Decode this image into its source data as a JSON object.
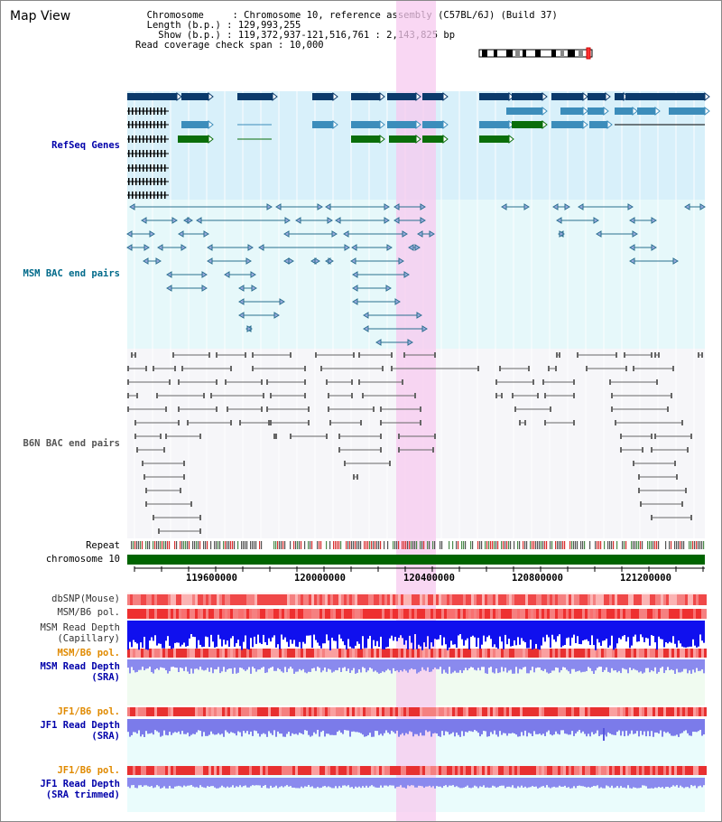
{
  "title": "Map View",
  "info": {
    "chromosome_label": "Chromosome",
    "chromosome_value": "Chromosome 10, reference assembly (C57BL/6J) (Build 37)",
    "length_label": "Length (b.p.)",
    "length_value": "129,993,255",
    "show_label": "Show (b.p.)",
    "show_value": "119,372,937-121,516,761 : 2,143,825 bp",
    "coverage_label": "Read coverage check span",
    "coverage_value": "10,000"
  },
  "tracks": {
    "refseq": "RefSeq Genes",
    "msm_bac": "MSM BAC end pairs",
    "b6n_bac": "B6N BAC end pairs",
    "repeat": "Repeat",
    "chromosome": "chromosome 10",
    "dbsnp": "dbSNP(Mouse)",
    "msm_b6_pol": "MSM/B6 pol.",
    "msm_read_depth_cap_1": "MSM Read Depth",
    "msm_read_depth_cap_2": "(Capillary)",
    "msm_b6_pol_sra": "MSM/B6 pol.",
    "msm_read_depth_sra_1": "MSM Read Depth",
    "msm_read_depth_sra_2": "(SRA)",
    "jf1_b6_pol": "JF1/B6 pol.",
    "jf1_read_depth_1": "JF1 Read Depth",
    "jf1_read_depth_2": "(SRA)",
    "jf1_b6_pol_trim": "JF1/B6 pol.",
    "jf1_read_depth_trim_1": "JF1 Read Depth",
    "jf1_read_depth_trim_2": "(SRA trimmed)"
  },
  "axis_ticks": [
    "119600000",
    "120000000",
    "120400000",
    "120800000",
    "121200000"
  ],
  "colors": {
    "refseq_dark": "#0b3a6b",
    "refseq_mid": "#3c8dbb",
    "refseq_green": "#0a6e0a",
    "msm_line": "#2a6f8f",
    "b6n_line": "#666666",
    "highlight": "#f7c9ef",
    "blue_label": "#0000aa",
    "teal_label": "#006a8a",
    "orange_label": "#e08a00"
  }
}
